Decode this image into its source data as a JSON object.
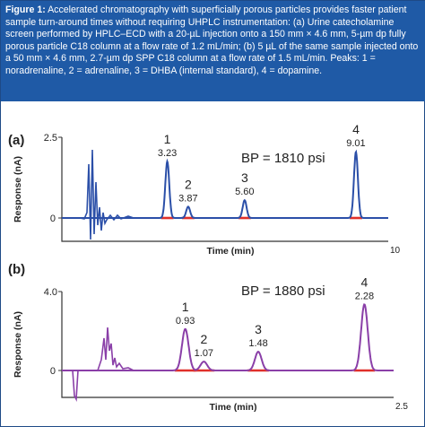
{
  "caption": {
    "label": "Figure 1:",
    "text": "Accelerated chromatography with superficially porous particles provides faster patient sample turn-around times without requiring UHPLC instrumentation: (a) Urine catecholamine screen performed by HPLC–ECD with a 20-µL injection onto a 150 mm × 4.6 mm, 5-µm dp fully porous particle C18 column at a flow rate of 1.2 mL/min; (b) 5 µL of the same sample injected onto a 50 mm × 4.6 mm, 2.7-µm dp SPP C18 column at a flow rate of 1.5 mL/min. Peaks: 1 = noradrenaline, 2 = adrenaline, 3 = DHBA (internal standard), 4 = dopamine."
  },
  "colors": {
    "caption_bg": "#1f5aa6",
    "trace_a": "#2b4fa8",
    "trace_b": "#8a3fa8",
    "baseline_marks": "#e0302a"
  },
  "chart_data": [
    {
      "type": "line",
      "panel_label": "(a)",
      "annotation": "BP = 1810 psi",
      "xlabel": "Time (min)",
      "ylabel": "Response (nA)",
      "xlim": [
        0,
        10
      ],
      "ylim": [
        0,
        2.5
      ],
      "x_tick_labels": [
        "10"
      ],
      "y_tick_labels": [
        "0",
        "2.5"
      ],
      "peaks": [
        {
          "label": "1",
          "time": 3.23,
          "height": 1.75
        },
        {
          "label": "2",
          "time": 3.87,
          "height": 0.35
        },
        {
          "label": "3",
          "time": 5.6,
          "height": 0.55
        },
        {
          "label": "4",
          "time": 9.01,
          "height": 2.05
        }
      ]
    },
    {
      "type": "line",
      "panel_label": "(b)",
      "annotation": "BP = 1880 psi",
      "xlabel": "Time (min)",
      "ylabel": "Response (nA)",
      "xlim": [
        0,
        2.5
      ],
      "ylim": [
        0,
        4.0
      ],
      "x_tick_labels": [
        "2.5"
      ],
      "y_tick_labels": [
        "0",
        "4.0"
      ],
      "peaks": [
        {
          "label": "1",
          "time": 0.93,
          "height": 2.1
        },
        {
          "label": "2",
          "time": 1.07,
          "height": 0.45
        },
        {
          "label": "3",
          "time": 1.48,
          "height": 0.95
        },
        {
          "label": "4",
          "time": 2.28,
          "height": 3.35
        }
      ]
    }
  ]
}
